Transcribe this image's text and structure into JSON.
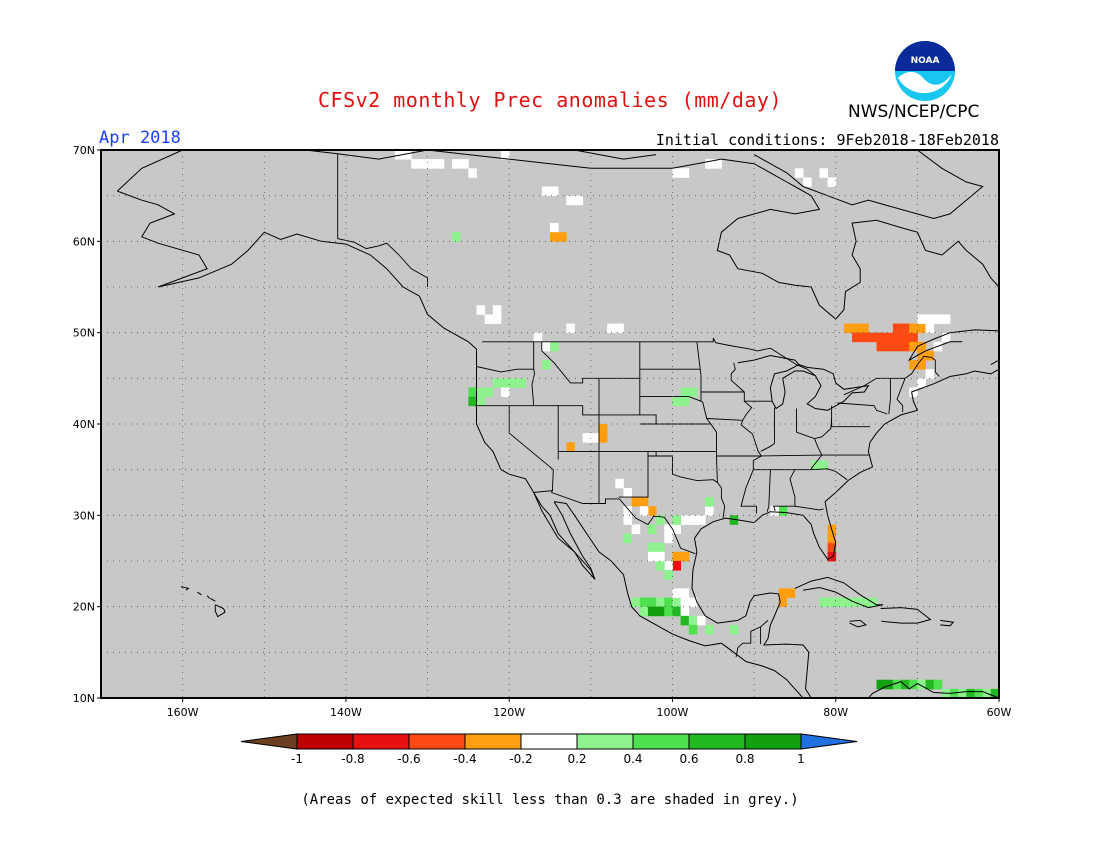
{
  "header": {
    "title": "CFSv2 monthly Prec anomalies (mm/day)",
    "valid_month": "Apr 2018",
    "initial_conditions": "Initial conditions: 9Feb2018-18Feb2018",
    "agency": "NWS/NCEP/CPC",
    "logo_text": "NOAA",
    "title_color": "#e01010",
    "month_color": "#1a40ff"
  },
  "map": {
    "lon_range": [
      -170,
      -60
    ],
    "lat_range": [
      10,
      70
    ],
    "lat_labels": [
      "10N",
      "20N",
      "30N",
      "40N",
      "50N",
      "60N",
      "70N"
    ],
    "lon_labels": [
      "160W",
      "140W",
      "120W",
      "100W",
      "80W",
      "60W"
    ],
    "mask_color": "#c8c8c8",
    "cell_deg": 1.0,
    "anomaly_cells": [
      {
        "lon": -134,
        "lat": 69,
        "v": 0.0
      },
      {
        "lon": -133,
        "lat": 69,
        "v": 0.0
      },
      {
        "lon": -132,
        "lat": 68,
        "v": 0.0
      },
      {
        "lon": -131,
        "lat": 68,
        "v": 0.0
      },
      {
        "lon": -130,
        "lat": 68,
        "v": 0.0
      },
      {
        "lon": -129,
        "lat": 68,
        "v": 0.0
      },
      {
        "lon": -127,
        "lat": 68,
        "v": 0.0
      },
      {
        "lon": -126,
        "lat": 68,
        "v": 0.0
      },
      {
        "lon": -125,
        "lat": 67,
        "v": 0.0
      },
      {
        "lon": -121,
        "lat": 69,
        "v": 0.0
      },
      {
        "lon": -116,
        "lat": 65,
        "v": 0.0
      },
      {
        "lon": -115,
        "lat": 65,
        "v": 0.0
      },
      {
        "lon": -113,
        "lat": 64,
        "v": 0.0
      },
      {
        "lon": -112,
        "lat": 64,
        "v": 0.0
      },
      {
        "lon": -100,
        "lat": 67,
        "v": 0.0
      },
      {
        "lon": -99,
        "lat": 67,
        "v": 0.0
      },
      {
        "lon": -96,
        "lat": 68,
        "v": 0.0
      },
      {
        "lon": -95,
        "lat": 68,
        "v": 0.0
      },
      {
        "lon": -85,
        "lat": 67,
        "v": 0.0
      },
      {
        "lon": -84,
        "lat": 66,
        "v": 0.0
      },
      {
        "lon": -82,
        "lat": 67,
        "v": 0.0
      },
      {
        "lon": -81,
        "lat": 66,
        "v": 0.0
      },
      {
        "lon": -115,
        "lat": 61,
        "v": 0.0
      },
      {
        "lon": -115,
        "lat": 60,
        "v": -0.3
      },
      {
        "lon": -114,
        "lat": 60,
        "v": -0.3
      },
      {
        "lon": -127,
        "lat": 60,
        "v": 0.3
      },
      {
        "lon": -124,
        "lat": 52,
        "v": 0.0
      },
      {
        "lon": -123,
        "lat": 51,
        "v": 0.0
      },
      {
        "lon": -122,
        "lat": 51,
        "v": 0.0
      },
      {
        "lon": -122,
        "lat": 52,
        "v": 0.0
      },
      {
        "lon": -113,
        "lat": 50,
        "v": 0.0
      },
      {
        "lon": -108,
        "lat": 50,
        "v": 0.0
      },
      {
        "lon": -107,
        "lat": 50,
        "v": 0.0
      },
      {
        "lon": -117,
        "lat": 49,
        "v": 0.0
      },
      {
        "lon": -116,
        "lat": 48,
        "v": 0.0
      },
      {
        "lon": -115,
        "lat": 48,
        "v": 0.3
      },
      {
        "lon": -116,
        "lat": 46,
        "v": 0.3
      },
      {
        "lon": -124,
        "lat": 43,
        "v": 0.3
      },
      {
        "lon": -123,
        "lat": 43,
        "v": 0.3
      },
      {
        "lon": -122,
        "lat": 44,
        "v": 0.3
      },
      {
        "lon": -121,
        "lat": 44,
        "v": 0.3
      },
      {
        "lon": -120,
        "lat": 44,
        "v": 0.3
      },
      {
        "lon": -119,
        "lat": 44,
        "v": 0.3
      },
      {
        "lon": -125,
        "lat": 43,
        "v": 0.5
      },
      {
        "lon": -125,
        "lat": 42,
        "v": 0.7
      },
      {
        "lon": -124,
        "lat": 42,
        "v": 0.3
      },
      {
        "lon": -121,
        "lat": 43,
        "v": 0.0
      },
      {
        "lon": -99,
        "lat": 43,
        "v": 0.3
      },
      {
        "lon": -98,
        "lat": 43,
        "v": 0.3
      },
      {
        "lon": -99,
        "lat": 42,
        "v": 0.3
      },
      {
        "lon": -100,
        "lat": 42,
        "v": 0.3
      },
      {
        "lon": -109,
        "lat": 39,
        "v": -0.3
      },
      {
        "lon": -109,
        "lat": 38,
        "v": -0.3
      },
      {
        "lon": -110,
        "lat": 38,
        "v": 0.0
      },
      {
        "lon": -111,
        "lat": 38,
        "v": 0.0
      },
      {
        "lon": -113,
        "lat": 37,
        "v": -0.3
      },
      {
        "lon": -107,
        "lat": 33,
        "v": 0.0
      },
      {
        "lon": -106,
        "lat": 32,
        "v": 0.0
      },
      {
        "lon": -105,
        "lat": 31,
        "v": -0.3
      },
      {
        "lon": -104,
        "lat": 31,
        "v": -0.3
      },
      {
        "lon": -103,
        "lat": 30,
        "v": -0.3
      },
      {
        "lon": -104,
        "lat": 30,
        "v": 0.0
      },
      {
        "lon": -106,
        "lat": 30,
        "v": 0.0
      },
      {
        "lon": -106,
        "lat": 29,
        "v": 0.0
      },
      {
        "lon": -105,
        "lat": 28,
        "v": 0.0
      },
      {
        "lon": -103,
        "lat": 28,
        "v": 0.3
      },
      {
        "lon": -102,
        "lat": 29,
        "v": 0.3
      },
      {
        "lon": -101,
        "lat": 28,
        "v": 0.0
      },
      {
        "lon": -100,
        "lat": 28,
        "v": 0.0
      },
      {
        "lon": -99,
        "lat": 29,
        "v": 0.0
      },
      {
        "lon": -98,
        "lat": 29,
        "v": 0.0
      },
      {
        "lon": -97,
        "lat": 29,
        "v": 0.0
      },
      {
        "lon": -96,
        "lat": 30,
        "v": 0.0
      },
      {
        "lon": -96,
        "lat": 31,
        "v": 0.3
      },
      {
        "lon": -100,
        "lat": 29,
        "v": 0.3
      },
      {
        "lon": -101,
        "lat": 27,
        "v": 0.0
      },
      {
        "lon": -102,
        "lat": 26,
        "v": 0.3
      },
      {
        "lon": -103,
        "lat": 26,
        "v": 0.3
      },
      {
        "lon": -106,
        "lat": 27,
        "v": 0.3
      },
      {
        "lon": -100,
        "lat": 25,
        "v": -0.3
      },
      {
        "lon": -99,
        "lat": 25,
        "v": -0.3
      },
      {
        "lon": -100,
        "lat": 24,
        "v": -0.7
      },
      {
        "lon": -101,
        "lat": 24,
        "v": 0.0
      },
      {
        "lon": -102,
        "lat": 24,
        "v": 0.3
      },
      {
        "lon": -101,
        "lat": 23,
        "v": 0.3
      },
      {
        "lon": -103,
        "lat": 25,
        "v": 0.0
      },
      {
        "lon": -102,
        "lat": 25,
        "v": 0.0
      },
      {
        "lon": -93,
        "lat": 29,
        "v": 0.7
      },
      {
        "lon": -87,
        "lat": 30,
        "v": 0.5
      },
      {
        "lon": -88,
        "lat": 30,
        "v": 0.0
      },
      {
        "lon": -83,
        "lat": 35,
        "v": 0.3
      },
      {
        "lon": -82,
        "lat": 35,
        "v": 0.3
      },
      {
        "lon": -81,
        "lat": 28,
        "v": -0.3
      },
      {
        "lon": -81,
        "lat": 27,
        "v": -0.3
      },
      {
        "lon": -81,
        "lat": 26,
        "v": -0.5
      },
      {
        "lon": -81,
        "lat": 25,
        "v": -0.7
      },
      {
        "lon": -87,
        "lat": 21,
        "v": -0.3
      },
      {
        "lon": -87,
        "lat": 20,
        "v": -0.3
      },
      {
        "lon": -86,
        "lat": 21,
        "v": -0.3
      },
      {
        "lon": -105,
        "lat": 20,
        "v": 0.3
      },
      {
        "lon": -104,
        "lat": 20,
        "v": 0.5
      },
      {
        "lon": -103,
        "lat": 20,
        "v": 0.5
      },
      {
        "lon": -102,
        "lat": 20,
        "v": 0.3
      },
      {
        "lon": -101,
        "lat": 20,
        "v": 0.5
      },
      {
        "lon": -100,
        "lat": 20,
        "v": 0.3
      },
      {
        "lon": -99,
        "lat": 20,
        "v": 0.0
      },
      {
        "lon": -98,
        "lat": 20,
        "v": 0.0
      },
      {
        "lon": -104,
        "lat": 19,
        "v": 0.3
      },
      {
        "lon": -103,
        "lat": 19,
        "v": 0.9
      },
      {
        "lon": -102,
        "lat": 19,
        "v": 0.9
      },
      {
        "lon": -101,
        "lat": 19,
        "v": 0.5
      },
      {
        "lon": -100,
        "lat": 19,
        "v": 0.7
      },
      {
        "lon": -99,
        "lat": 19,
        "v": 0.0
      },
      {
        "lon": -99,
        "lat": 18,
        "v": 0.7
      },
      {
        "lon": -98,
        "lat": 18,
        "v": 0.3
      },
      {
        "lon": -97,
        "lat": 18,
        "v": 0.0
      },
      {
        "lon": -96,
        "lat": 17,
        "v": 0.3
      },
      {
        "lon": -98,
        "lat": 17,
        "v": 0.5
      },
      {
        "lon": -93,
        "lat": 17,
        "v": 0.3
      },
      {
        "lon": -99,
        "lat": 21,
        "v": 0.0
      },
      {
        "lon": -100,
        "lat": 21,
        "v": 0.0
      },
      {
        "lon": -82,
        "lat": 20,
        "v": 0.3
      },
      {
        "lon": -81,
        "lat": 20,
        "v": 0.3
      },
      {
        "lon": -80,
        "lat": 20,
        "v": 0.3
      },
      {
        "lon": -79,
        "lat": 20,
        "v": 0.3
      },
      {
        "lon": -78,
        "lat": 20,
        "v": 0.3
      },
      {
        "lon": -77,
        "lat": 20,
        "v": 0.3
      },
      {
        "lon": -76,
        "lat": 20,
        "v": 0.3
      },
      {
        "lon": -75,
        "lat": 11,
        "v": 0.9
      },
      {
        "lon": -74,
        "lat": 11,
        "v": 0.9
      },
      {
        "lon": -73,
        "lat": 11,
        "v": 0.5
      },
      {
        "lon": -72,
        "lat": 11,
        "v": 0.7
      },
      {
        "lon": -71,
        "lat": 11,
        "v": 0.5
      },
      {
        "lon": -70,
        "lat": 11,
        "v": 0.3
      },
      {
        "lon": -69,
        "lat": 11,
        "v": 0.7
      },
      {
        "lon": -68,
        "lat": 11,
        "v": 0.5
      },
      {
        "lon": -67,
        "lat": 10,
        "v": 0.3
      },
      {
        "lon": -66,
        "lat": 10,
        "v": 0.5
      },
      {
        "lon": -65,
        "lat": 10,
        "v": 0.3
      },
      {
        "lon": -64,
        "lat": 10,
        "v": 0.7
      },
      {
        "lon": -63,
        "lat": 10,
        "v": 0.5
      },
      {
        "lon": -62,
        "lat": 10,
        "v": 0.3
      },
      {
        "lon": -61,
        "lat": 10,
        "v": 0.7
      },
      {
        "lon": -79,
        "lat": 50,
        "v": -0.3
      },
      {
        "lon": -78,
        "lat": 50,
        "v": -0.3
      },
      {
        "lon": -77,
        "lat": 50,
        "v": -0.3
      },
      {
        "lon": -78,
        "lat": 49,
        "v": -0.5
      },
      {
        "lon": -77,
        "lat": 49,
        "v": -0.5
      },
      {
        "lon": -76,
        "lat": 49,
        "v": -0.5
      },
      {
        "lon": -75,
        "lat": 49,
        "v": -0.5
      },
      {
        "lon": -74,
        "lat": 49,
        "v": -0.5
      },
      {
        "lon": -73,
        "lat": 49,
        "v": -0.5
      },
      {
        "lon": -72,
        "lat": 49,
        "v": -0.5
      },
      {
        "lon": -71,
        "lat": 49,
        "v": -0.5
      },
      {
        "lon": -75,
        "lat": 48,
        "v": -0.5
      },
      {
        "lon": -74,
        "lat": 48,
        "v": -0.5
      },
      {
        "lon": -73,
        "lat": 48,
        "v": -0.5
      },
      {
        "lon": -72,
        "lat": 48,
        "v": -0.5
      },
      {
        "lon": -73,
        "lat": 50,
        "v": -0.5
      },
      {
        "lon": -72,
        "lat": 50,
        "v": -0.5
      },
      {
        "lon": -71,
        "lat": 50,
        "v": -0.3
      },
      {
        "lon": -70,
        "lat": 50,
        "v": -0.3
      },
      {
        "lon": -71,
        "lat": 48,
        "v": -0.3
      },
      {
        "lon": -70,
        "lat": 48,
        "v": -0.3
      },
      {
        "lon": -70,
        "lat": 47,
        "v": -0.3
      },
      {
        "lon": -69,
        "lat": 47,
        "v": -0.3
      },
      {
        "lon": -70,
        "lat": 46,
        "v": -0.3
      },
      {
        "lon": -71,
        "lat": 46,
        "v": -0.3
      },
      {
        "lon": -69,
        "lat": 51,
        "v": 0.0
      },
      {
        "lon": -68,
        "lat": 51,
        "v": 0.0
      },
      {
        "lon": -70,
        "lat": 51,
        "v": 0.0
      },
      {
        "lon": -67,
        "lat": 51,
        "v": 0.0
      },
      {
        "lon": -69,
        "lat": 50,
        "v": 0.0
      },
      {
        "lon": -67,
        "lat": 49,
        "v": 0.0
      },
      {
        "lon": -68,
        "lat": 48,
        "v": 0.0
      },
      {
        "lon": -69,
        "lat": 45,
        "v": 0.0
      },
      {
        "lon": -70,
        "lat": 44,
        "v": 0.0
      },
      {
        "lon": -71,
        "lat": 43,
        "v": 0.0
      }
    ]
  },
  "colorbar": {
    "labels": [
      "-1",
      "-0.8",
      "-0.6",
      "-0.4",
      "-0.2",
      "0.2",
      "0.4",
      "0.6",
      "0.8",
      "1"
    ],
    "colors": [
      "#6b3f1f",
      "#c00000",
      "#e81010",
      "#ff4a14",
      "#ff9f10",
      "#ffffff",
      "#8ef28e",
      "#4ee04e",
      "#22b822",
      "#10a010",
      "#2070e0"
    ]
  },
  "footnote": "(Areas of expected skill less than 0.3 are shaded in grey.)"
}
